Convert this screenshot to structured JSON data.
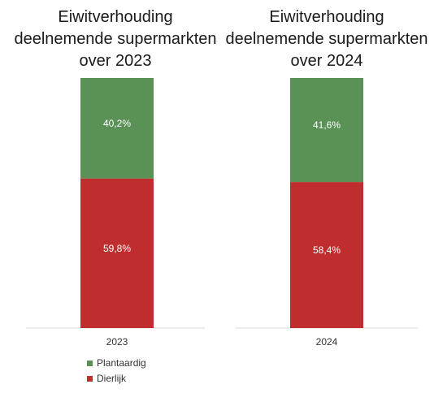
{
  "chart_data": [
    {
      "type": "bar",
      "stacked": true,
      "title": [
        "Eiwitverhouding",
        "deelnemende supermarkten",
        "over 2023"
      ],
      "categories": [
        "2023"
      ],
      "series": [
        {
          "name": "Dierlijk",
          "values": [
            59.8
          ],
          "label": "59,8%",
          "color": "#bf2d2f"
        },
        {
          "name": "Plantaardig",
          "values": [
            40.2
          ],
          "label": "40,2%",
          "color": "#5a9157"
        }
      ],
      "ylim": [
        0,
        100
      ],
      "unit": "%",
      "grid": false
    },
    {
      "type": "bar",
      "stacked": true,
      "title": [
        "Eiwitverhouding",
        "deelnemende supermarkten",
        "over 2024"
      ],
      "categories": [
        "2024"
      ],
      "series": [
        {
          "name": "Dierlijk",
          "values": [
            58.4
          ],
          "label": "58,4%",
          "color": "#bf2d2f"
        },
        {
          "name": "Plantaardig",
          "values": [
            41.6
          ],
          "label": "41,6%",
          "color": "#5a9157"
        }
      ],
      "ylim": [
        0,
        100
      ],
      "unit": "%",
      "grid": false
    }
  ],
  "legend": {
    "placement": "bottom-left",
    "items": [
      {
        "label": "Plantaardig",
        "color": "#5a9157"
      },
      {
        "label": "Dierlijk",
        "color": "#bf2d2f"
      }
    ]
  }
}
